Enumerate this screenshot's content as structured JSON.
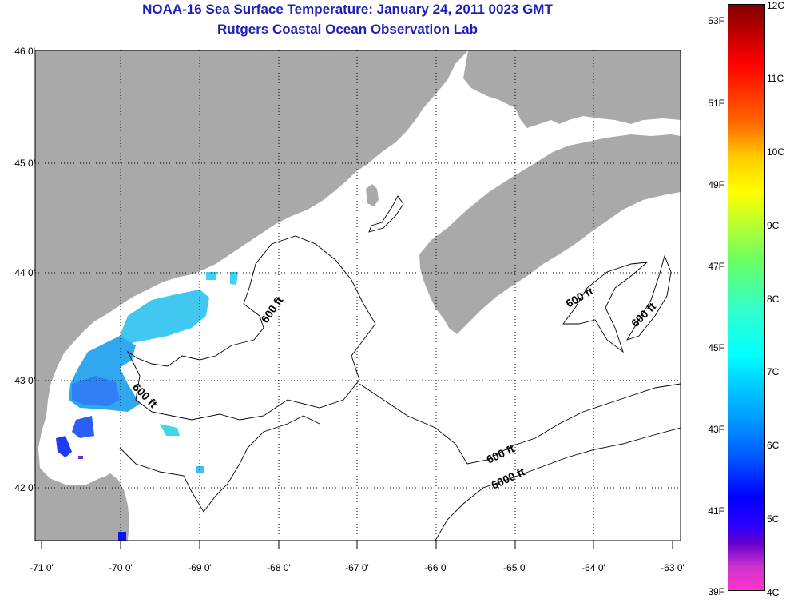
{
  "header": {
    "title": "NOAA-16 Sea Surface Temperature:  January 24, 2011 0023 GMT",
    "subtitle": "Rutgers Coastal Ocean Observation Lab"
  },
  "map": {
    "latitude_labels": [
      "46 0'",
      "45 0'",
      "44 0'",
      "43 0'",
      "42 0'"
    ],
    "longitude_labels": [
      "-71 0'",
      "-70 0'",
      "-69 0'",
      "-68 0'",
      "-67 0'",
      "-66 0'",
      "-65 0'",
      "-64 0'",
      "-63 0'"
    ],
    "contour_labels": {
      "c1": "600 ft",
      "c2": "600 ft",
      "c3": "600 ft",
      "c4": "6000 ft",
      "c5": "600 ft",
      "c6": "600 ft"
    },
    "colors": {
      "land": "#a9a9a9",
      "ocean": "#ffffff",
      "grid": "#000000"
    }
  },
  "colorbar": {
    "fahrenheit_labels": [
      "53F",
      "51F",
      "49F",
      "47F",
      "45F",
      "43F",
      "41F",
      "39F"
    ],
    "celsius_labels": [
      "12C",
      "11C",
      "10C",
      "9C",
      "8C",
      "7C",
      "6C",
      "5C",
      "4C"
    ]
  }
}
